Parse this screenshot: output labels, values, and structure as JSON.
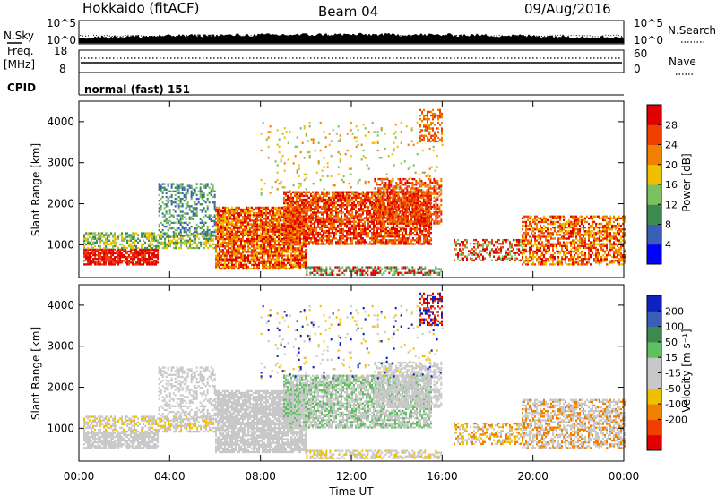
{
  "header": {
    "station": "Hokkaido (fitACF)",
    "beam": "Beam 04",
    "date": "09/Aug/2016"
  },
  "strip_nsky": {
    "left_label": "N.Sky",
    "right_label": "N.Search",
    "left_ticks": [
      "10^5",
      "10^0"
    ],
    "right_ticks": [
      "10^5",
      "10^0"
    ]
  },
  "strip_freq": {
    "left_label_1": "Freq.",
    "left_label_2": "[MHz]",
    "left_ticks": [
      "18",
      "8"
    ],
    "right_label": "Nave",
    "right_ticks": [
      "60",
      "0"
    ]
  },
  "cpid": {
    "label": "CPID",
    "value": "normal (fast) 151"
  },
  "colors": {
    "power": [
      "#0000ff",
      "#3a5fb8",
      "#3c8a50",
      "#7cc060",
      "#f0c000",
      "#f08000",
      "#f04000",
      "#e00000"
    ],
    "velocity": [
      "#e00000",
      "#f04000",
      "#f08000",
      "#f0c000",
      "#c8c8c8",
      "#c8c8c8",
      "#60c060",
      "#3c8a50",
      "#3a5fb8",
      "#1020c0"
    ]
  },
  "chart_data": [
    {
      "type": "heatmap",
      "title": "",
      "ylabel": "Slant Range [km]",
      "yticks": [
        "1000",
        "2000",
        "3000",
        "4000"
      ],
      "ylim": [
        200,
        4500
      ],
      "xlim_hours": [
        0,
        24
      ],
      "colorbar": {
        "label": "Power [dB]",
        "ticks": [
          "4",
          "8",
          "12",
          "16",
          "20",
          "24",
          "28"
        ],
        "range": [
          0,
          32
        ]
      }
    },
    {
      "type": "heatmap",
      "title": "",
      "ylabel": "Slant Range [km]",
      "yticks": [
        "1000",
        "2000",
        "3000",
        "4000"
      ],
      "ylim": [
        200,
        4500
      ],
      "xlim_hours": [
        0,
        24
      ],
      "xticks": [
        "00:00",
        "04:00",
        "08:00",
        "12:00",
        "16:00",
        "20:00",
        "00:00"
      ],
      "xlabel": "Time UT",
      "colorbar": {
        "label": "Velocity [m s⁻¹]",
        "ticks": [
          "200",
          "100",
          "50",
          "15",
          "-15",
          "-50",
          "-100",
          "-200"
        ],
        "range": [
          -250,
          250
        ]
      }
    }
  ]
}
